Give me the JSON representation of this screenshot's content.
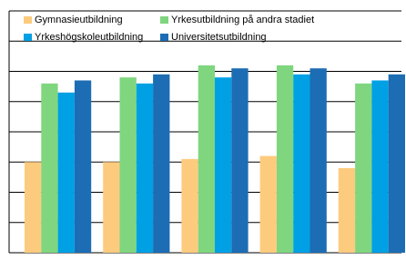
{
  "chart_data": {
    "type": "bar",
    "categories": [
      null,
      null,
      null,
      null,
      null
    ],
    "series": [
      {
        "name": "Gymnasieutbildning",
        "color": "#fdcb7e",
        "values": [
          3.0,
          3.0,
          3.1,
          3.2,
          2.8
        ]
      },
      {
        "name": "Yrkesutbildning på andra stadiet",
        "color": "#7fd67f",
        "values": [
          5.6,
          5.8,
          6.2,
          6.2,
          5.6
        ]
      },
      {
        "name": "Yrkeshögskoleutbildning",
        "color": "#00a0e4",
        "values": [
          5.3,
          5.6,
          5.8,
          5.9,
          5.7
        ]
      },
      {
        "name": "Universitetsutbildning",
        "color": "#1c6db3",
        "values": [
          5.7,
          5.9,
          6.1,
          6.1,
          5.9
        ]
      }
    ],
    "ylim": [
      0,
      8
    ],
    "yticks": [
      0,
      1,
      2,
      3,
      4,
      5,
      6,
      7,
      8
    ],
    "grid": true
  }
}
